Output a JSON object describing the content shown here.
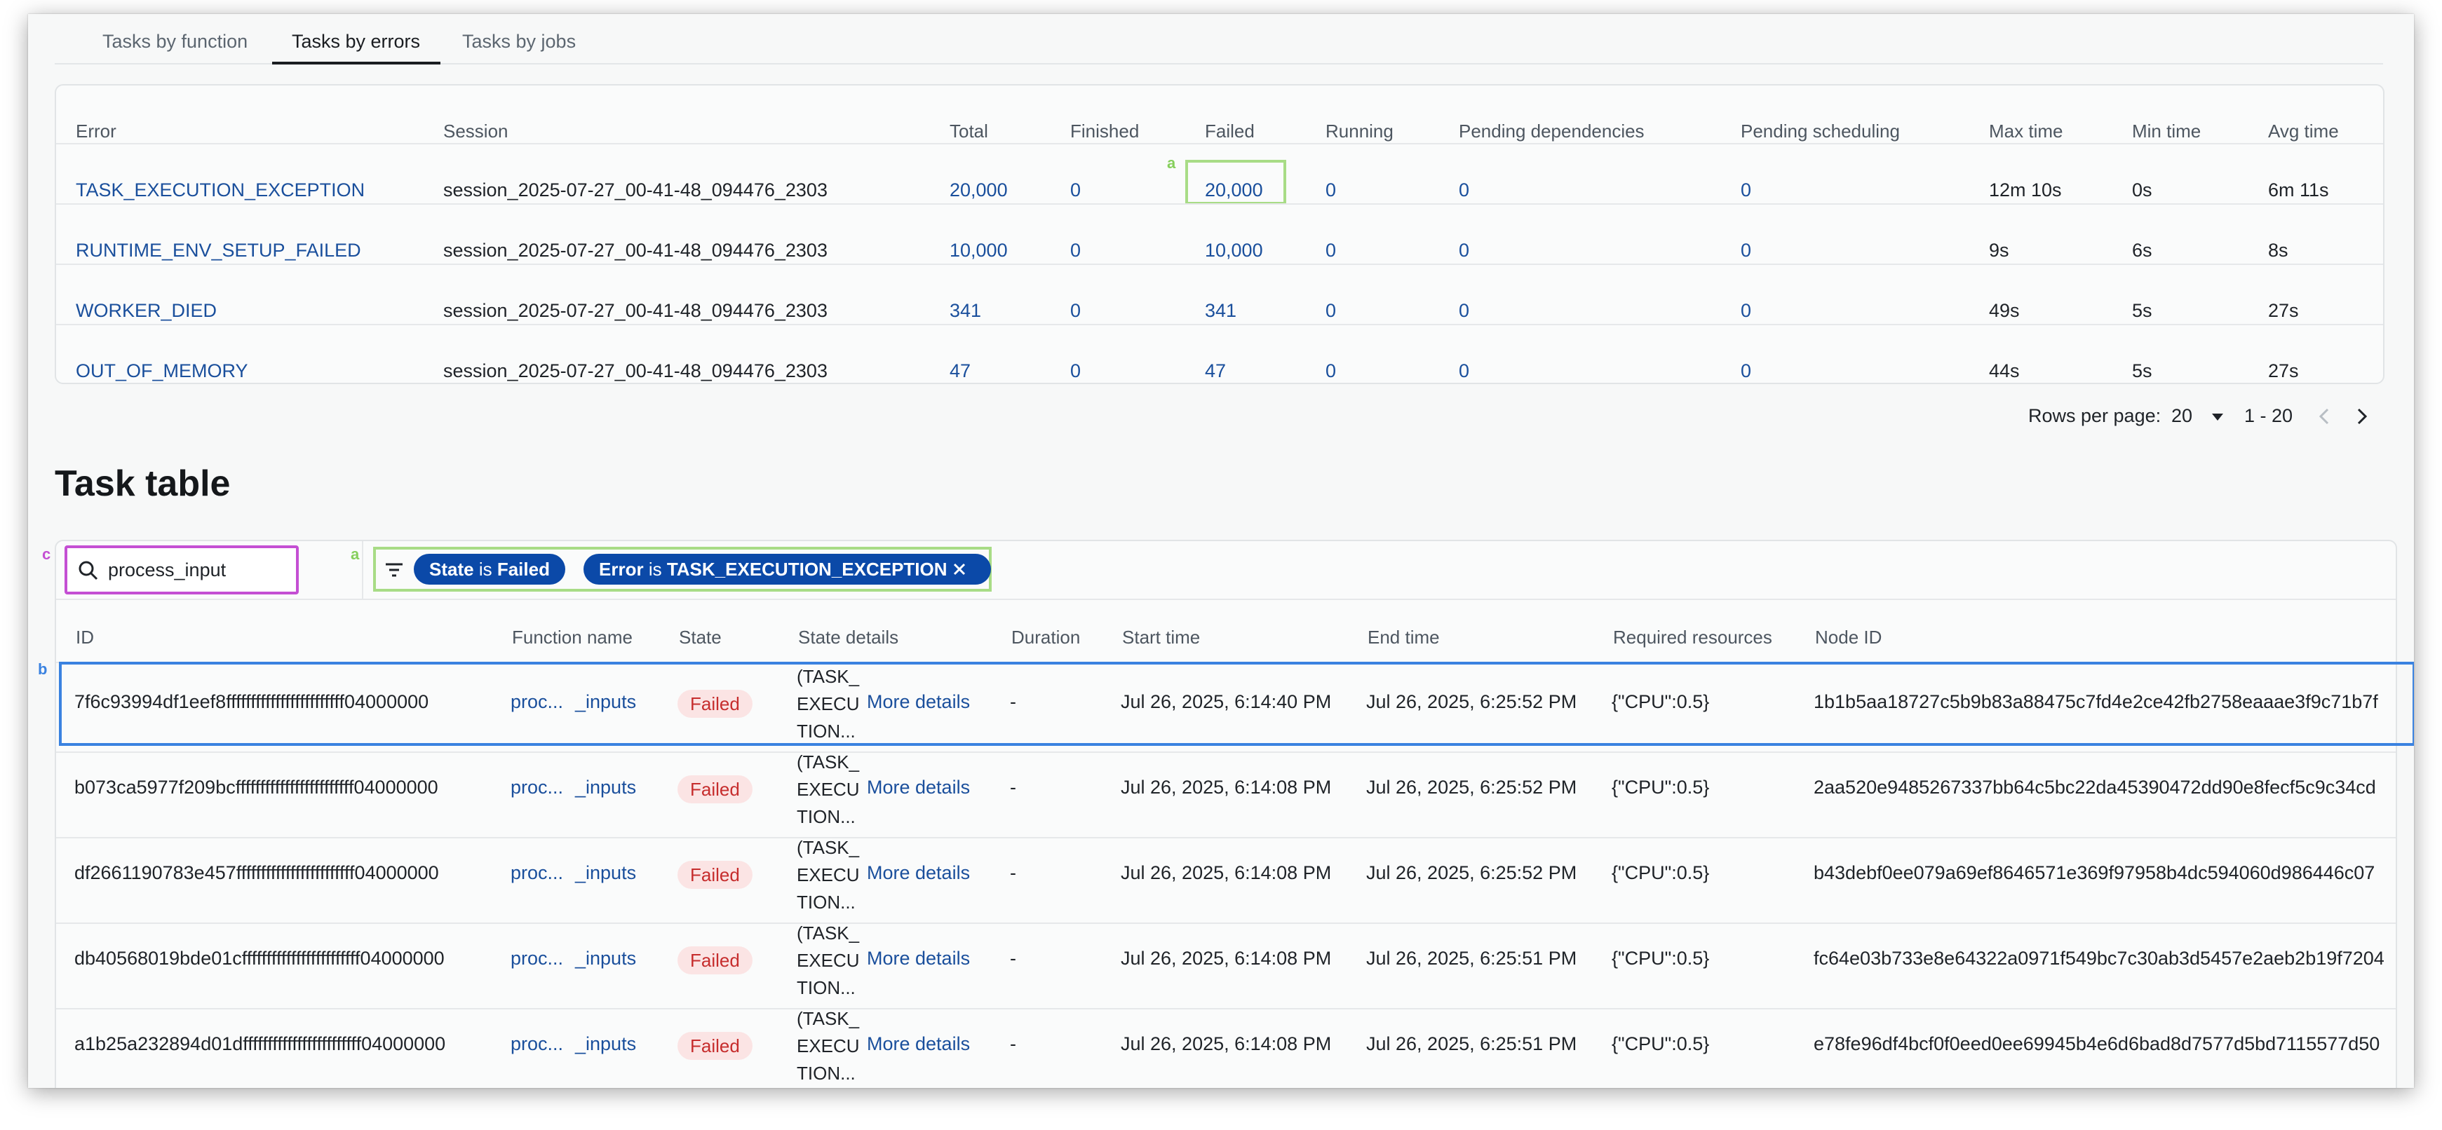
{
  "tabs": [
    {
      "label": "Tasks by function"
    },
    {
      "label": "Tasks by errors"
    },
    {
      "label": "Tasks by jobs"
    }
  ],
  "error_table": {
    "headers": {
      "error": "Error",
      "session": "Session",
      "total": "Total",
      "finished": "Finished",
      "failed": "Failed",
      "running": "Running",
      "pending_deps": "Pending dependencies",
      "pending_sched": "Pending scheduling",
      "max_time": "Max time",
      "min_time": "Min time",
      "avg_time": "Avg time"
    },
    "rows": [
      {
        "error": "TASK_EXECUTION_EXCEPTION",
        "session": "session_2025-07-27_00-41-48_094476_2303",
        "total": "20,000",
        "finished": "0",
        "failed": "20,000",
        "running": "0",
        "pending_deps": "0",
        "pending_sched": "0",
        "max_time": "12m 10s",
        "min_time": "0s",
        "avg_time": "6m 11s"
      },
      {
        "error": "RUNTIME_ENV_SETUP_FAILED",
        "session": "session_2025-07-27_00-41-48_094476_2303",
        "total": "10,000",
        "finished": "0",
        "failed": "10,000",
        "running": "0",
        "pending_deps": "0",
        "pending_sched": "0",
        "max_time": "9s",
        "min_time": "6s",
        "avg_time": "8s"
      },
      {
        "error": "WORKER_DIED",
        "session": "session_2025-07-27_00-41-48_094476_2303",
        "total": "341",
        "finished": "0",
        "failed": "341",
        "running": "0",
        "pending_deps": "0",
        "pending_sched": "0",
        "max_time": "49s",
        "min_time": "5s",
        "avg_time": "27s"
      },
      {
        "error": "OUT_OF_MEMORY",
        "session": "session_2025-07-27_00-41-48_094476_2303",
        "total": "47",
        "finished": "0",
        "failed": "47",
        "running": "0",
        "pending_deps": "0",
        "pending_sched": "0",
        "max_time": "44s",
        "min_time": "5s",
        "avg_time": "27s"
      }
    ]
  },
  "pagination": {
    "rows_per_page_label": "Rows per page:",
    "rows_per_page_value": "20",
    "range": "1 - 20"
  },
  "task_table": {
    "title": "Task table",
    "search_value": "process_input",
    "filters": [
      {
        "field": "State",
        "op": "is",
        "value": "Failed"
      },
      {
        "field": "Error",
        "op": "is",
        "value": "TASK_EXECUTION_EXCEPTION",
        "removable": true
      }
    ],
    "headers": {
      "id": "ID",
      "function_name": "Function name",
      "state": "State",
      "state_details": "State details",
      "duration": "Duration",
      "start_time": "Start time",
      "end_time": "End time",
      "required_resources": "Required resources",
      "node_id": "Node ID"
    },
    "rows": [
      {
        "id": "7f6c93994df1eef8ffffffffffffffffffffffff04000000",
        "func_a": "proc...",
        "func_b": "_inputs",
        "state": "Failed",
        "details_lines": [
          "(TASK_",
          "EXECU",
          "TION..."
        ],
        "more": "More details",
        "duration": "-",
        "start": "Jul 26, 2025, 6:14:40 PM",
        "end": "Jul 26, 2025, 6:25:52 PM",
        "resources": "{\"CPU\":0.5}",
        "node": "1b1b5aa18727c5b9b83a88475c7fd4e2ce42fb2758eaaae3f9c71b7f"
      },
      {
        "id": "b073ca5977f209bcffffffffffffffffffffffff04000000",
        "func_a": "proc...",
        "func_b": "_inputs",
        "state": "Failed",
        "details_lines": [
          "(TASK_",
          "EXECU",
          "TION..."
        ],
        "more": "More details",
        "duration": "-",
        "start": "Jul 26, 2025, 6:14:08 PM",
        "end": "Jul 26, 2025, 6:25:52 PM",
        "resources": "{\"CPU\":0.5}",
        "node": "2aa520e9485267337bb64c5bc22da45390472dd90e8fecf5c9c34cd"
      },
      {
        "id": "df2661190783e457ffffffffffffffffffffffff04000000",
        "func_a": "proc...",
        "func_b": "_inputs",
        "state": "Failed",
        "details_lines": [
          "(TASK_",
          "EXECU",
          "TION..."
        ],
        "more": "More details",
        "duration": "-",
        "start": "Jul 26, 2025, 6:14:08 PM",
        "end": "Jul 26, 2025, 6:25:52 PM",
        "resources": "{\"CPU\":0.5}",
        "node": "b43debf0ee079a69ef8646571e369f97958b4dc594060d986446c07"
      },
      {
        "id": "db40568019bde01cffffffffffffffffffffffff04000000",
        "func_a": "proc...",
        "func_b": "_inputs",
        "state": "Failed",
        "details_lines": [
          "(TASK_",
          "EXECU",
          "TION..."
        ],
        "more": "More details",
        "duration": "-",
        "start": "Jul 26, 2025, 6:14:08 PM",
        "end": "Jul 26, 2025, 6:25:51 PM",
        "resources": "{\"CPU\":0.5}",
        "node": "fc64e03b733e8e64322a0971f549bc7c30ab3d5457e2aeb2b19f7204"
      },
      {
        "id": "a1b25a232894d01dffffffffffffffffffffffff04000000",
        "func_a": "proc...",
        "func_b": "_inputs",
        "state": "Failed",
        "details_lines": [
          "(TASK_",
          "EXECU",
          "TION..."
        ],
        "more": "More details",
        "duration": "-",
        "start": "Jul 26, 2025, 6:14:08 PM",
        "end": "Jul 26, 2025, 6:25:51 PM",
        "resources": "{\"CPU\":0.5}",
        "node": "e78fe96df4bcf0f0eed0ee69945b4e6d6bad8d7577d5bd7115577d50"
      }
    ]
  },
  "annotations": {
    "a": "a",
    "b": "b",
    "c": "c"
  },
  "colors": {
    "link": "#1a4f9c",
    "chip": "#0b49a8",
    "failed_badge_bg": "#fbe4e4",
    "failed_badge_text": "#c62d2d",
    "annot_green": "#86cf5c",
    "annot_magenta": "#c44fd3",
    "annot_blue": "#3a82e0"
  }
}
